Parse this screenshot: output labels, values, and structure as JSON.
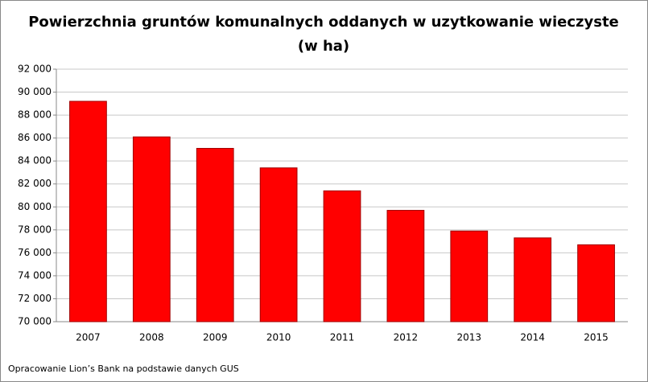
{
  "chart_data": {
    "type": "bar",
    "title": [
      "Powierzchnia gruntów komunalnych oddanych w uzytkowanie wieczyste",
      "(w ha)"
    ],
    "categories": [
      "2007",
      "2008",
      "2009",
      "2010",
      "2011",
      "2012",
      "2013",
      "2014",
      "2015"
    ],
    "values": [
      89200,
      86100,
      85100,
      83400,
      81400,
      79700,
      77900,
      77300,
      76700
    ],
    "color": "#ff0000",
    "ylim": [
      70000,
      92000
    ],
    "yticks": [
      {
        "value": 70000,
        "label": "70 000"
      },
      {
        "value": 72000,
        "label": "72 000"
      },
      {
        "value": 74000,
        "label": "74 000"
      },
      {
        "value": 76000,
        "label": "76 000"
      },
      {
        "value": 78000,
        "label": "78 000"
      },
      {
        "value": 80000,
        "label": "80 000"
      },
      {
        "value": 82000,
        "label": "82 000"
      },
      {
        "value": 84000,
        "label": "84 000"
      },
      {
        "value": 86000,
        "label": "86 000"
      },
      {
        "value": 88000,
        "label": "88 000"
      },
      {
        "value": 90000,
        "label": "90 000"
      },
      {
        "value": 92000,
        "label": "92 000"
      }
    ],
    "grid": true,
    "source": "Opracowanie Lion’s Bank na podstawie danych GUS"
  }
}
